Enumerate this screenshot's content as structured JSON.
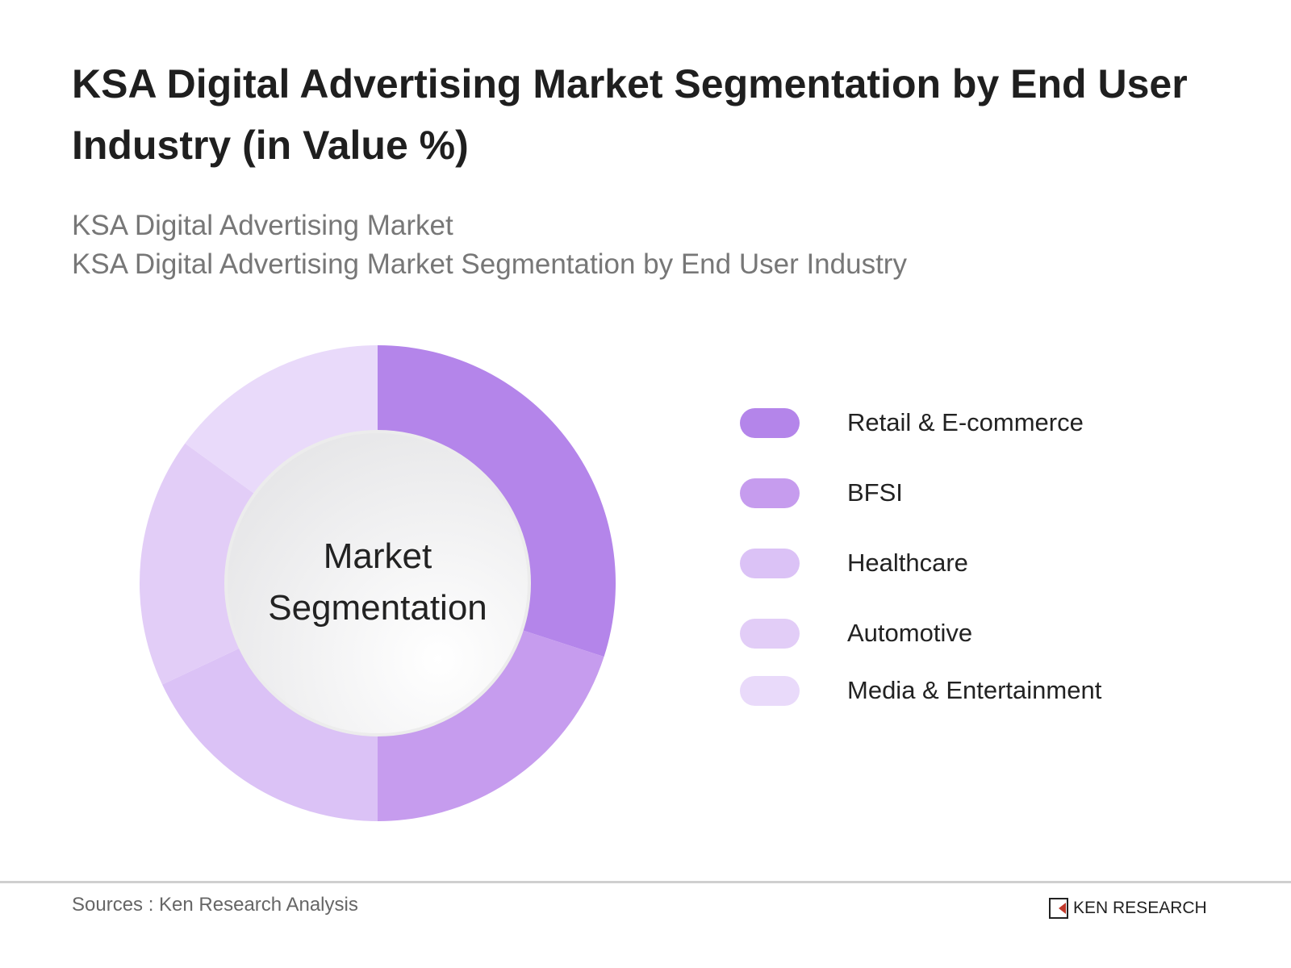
{
  "title": "KSA Digital Advertising Market Segmentation by End User Industry (in Value %)",
  "subtitle_1": "KSA Digital Advertising Market",
  "subtitle_2": "KSA Digital Advertising Market Segmentation by End User Industry",
  "center_label_1": "Market",
  "center_label_2": "Segmentation",
  "footer": {
    "source": "Sources : Ken Research Analysis",
    "logo": "KEN RESEARCH"
  },
  "chart_data": {
    "type": "pie",
    "variant": "donut",
    "title": "KSA Digital Advertising Market Segmentation by End User Industry (in Value %)",
    "legend_position": "right",
    "categories": [
      "Retail & E-commerce",
      "BFSI",
      "Healthcare",
      "Automotive",
      "Media & Entertainment"
    ],
    "values": [
      30,
      20,
      18,
      17,
      15
    ],
    "colors": [
      "#b485ea",
      "#c69cee",
      "#dbc2f6",
      "#e2cdf7",
      "#e9dafa"
    ]
  }
}
